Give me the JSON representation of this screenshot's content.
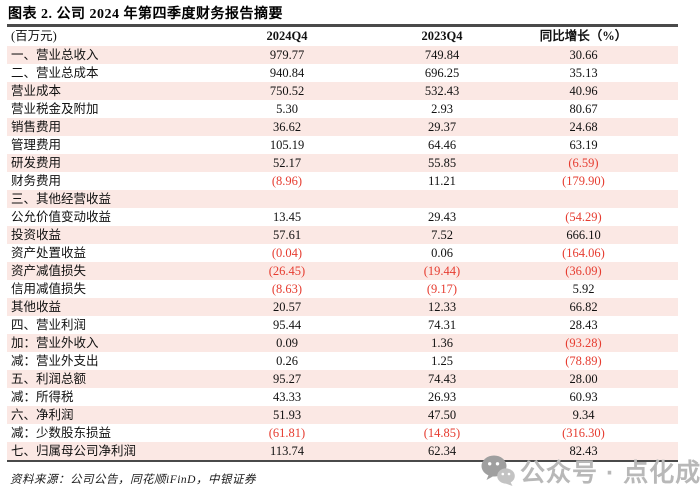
{
  "title": "图表 2. 公司 2024 年第四季度财务报告摘要",
  "table": {
    "columns": [
      "(百万元)",
      "2024Q4",
      "2023Q4",
      "同比增长（%）"
    ],
    "rows": [
      {
        "label": "一、营业总收入",
        "q4_2024": "979.77",
        "q4_2023": "749.84",
        "yoy": "30.66"
      },
      {
        "label": "二、营业总成本",
        "q4_2024": "940.84",
        "q4_2023": "696.25",
        "yoy": "35.13"
      },
      {
        "label": "营业成本",
        "q4_2024": "750.52",
        "q4_2023": "532.43",
        "yoy": "40.96"
      },
      {
        "label": "营业税金及附加",
        "q4_2024": "5.30",
        "q4_2023": "2.93",
        "yoy": "80.67"
      },
      {
        "label": "销售费用",
        "q4_2024": "36.62",
        "q4_2023": "29.37",
        "yoy": "24.68"
      },
      {
        "label": "管理费用",
        "q4_2024": "105.19",
        "q4_2023": "64.46",
        "yoy": "63.19"
      },
      {
        "label": "研发费用",
        "q4_2024": "52.17",
        "q4_2023": "55.85",
        "yoy": "(6.59)"
      },
      {
        "label": "财务费用",
        "q4_2024": "(8.96)",
        "q4_2023": "11.21",
        "yoy": "(179.90)"
      },
      {
        "label": "三、其他经营收益",
        "q4_2024": "",
        "q4_2023": "",
        "yoy": ""
      },
      {
        "label": "公允价值变动收益",
        "q4_2024": "13.45",
        "q4_2023": "29.43",
        "yoy": "(54.29)"
      },
      {
        "label": "投资收益",
        "q4_2024": "57.61",
        "q4_2023": "7.52",
        "yoy": "666.10"
      },
      {
        "label": "资产处置收益",
        "q4_2024": "(0.04)",
        "q4_2023": "0.06",
        "yoy": "(164.06)"
      },
      {
        "label": "资产减值损失",
        "q4_2024": "(26.45)",
        "q4_2023": "(19.44)",
        "yoy": "(36.09)"
      },
      {
        "label": "信用减值损失",
        "q4_2024": "(8.63)",
        "q4_2023": "(9.17)",
        "yoy": "5.92"
      },
      {
        "label": "其他收益",
        "q4_2024": "20.57",
        "q4_2023": "12.33",
        "yoy": "66.82"
      },
      {
        "label": "四、营业利润",
        "q4_2024": "95.44",
        "q4_2023": "74.31",
        "yoy": "28.43"
      },
      {
        "label": "加：营业外收入",
        "q4_2024": "0.09",
        "q4_2023": "1.36",
        "yoy": "(93.28)"
      },
      {
        "label": "减：营业外支出",
        "q4_2024": "0.26",
        "q4_2023": "1.25",
        "yoy": "(78.89)"
      },
      {
        "label": "五、利润总额",
        "q4_2024": "95.27",
        "q4_2023": "74.43",
        "yoy": "28.00"
      },
      {
        "label": "减：所得税",
        "q4_2024": "43.33",
        "q4_2023": "26.93",
        "yoy": "60.93"
      },
      {
        "label": "六、净利润",
        "q4_2024": "51.93",
        "q4_2023": "47.50",
        "yoy": "9.34"
      },
      {
        "label": "减：少数股东损益",
        "q4_2024": "(61.81)",
        "q4_2023": "(14.85)",
        "yoy": "(316.30)"
      },
      {
        "label": "七、归属母公司净利润",
        "q4_2024": "113.74",
        "q4_2023": "62.34",
        "yoy": "82.43"
      }
    ]
  },
  "footer": {
    "source": "资料来源：公司公告，同花顺iFinD，中银证券"
  },
  "watermark": {
    "icon": "wechat-icon",
    "text": "公众号 · 点化成金"
  },
  "colors": {
    "negative_red": "#e63c30",
    "row_stripe_pink": "#fbe8e4",
    "rule_dark": "#4a4a4a",
    "watermark_gray": "#b8b8b8"
  }
}
